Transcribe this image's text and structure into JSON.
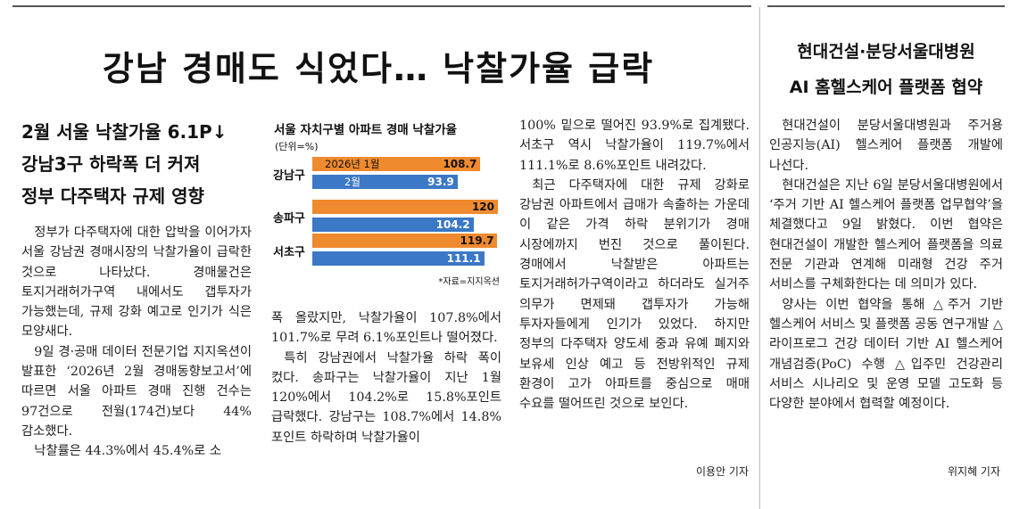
{
  "main_article": {
    "headline": "강남 경매도 식었다… 낙찰가율 급락",
    "subheads": [
      "2월 서울 낙찰가율 6.1P↓",
      "강남3구 하락폭 더 커져",
      "정부 다주택자 규제 영향"
    ],
    "col1": [
      "정부가 다주택자에 대한 압박을 이어가자 서울 강남권 경매시장의 낙찰가율이 급락한 것으로 나타났다. 경매물건은 토지거래허가구역 내에서도 갭투자가 가능했는데, 규제 강화 예고로 인기가 식은 모양새다.",
      "9일 경·공매 데이터 전문기업 지지옥션이 발표한 ‘2026년 2월 경매동향보고서’에 따르면 서울 아파트 경매 진행 건수는 97건으로 전월(174건)보다 44% 감소했다.",
      "낙찰률은 44.3%에서 45.4%로 소"
    ],
    "col2": [
      "폭 올랐지만, 낙찰가율이 107.8%에서 101.7%로 무려 6.1%포인트나 떨어졌다.",
      "특히 강남권에서 낙찰가율 하락 폭이 컸다. 송파구는 낙찰가율이 지난 1월 120%에서 104.2%로 15.8%포인트 급락했다. 강남구는 108.7%에서 14.8%포인트 하락하며 낙찰가율이"
    ],
    "col3": [
      "100% 밑으로 떨어진 93.9%로 집계됐다. 서초구 역시 낙찰가율이 119.7%에서 111.1%로 8.6%포인트 내려갔다.",
      "최근 다주택자에 대한 규제 강화로 강남권 아파트에서 급매가 속출하는 가운데 이 같은 가격 하락 분위기가 경매 시장에까지 번진 것으로 풀이된다. 경매에서 낙찰받은 아파트는 토지거래허가구역이라고 하더라도 실거주 의무가 면제돼 갭투자가 가능해 투자자들에게 인기가 있었다. 하지만 정부의 다주택자 양도세 중과 유예 폐지와 보유세 인상 예고 등 전방위적인 규제 환경이 고가 아파트를 중심으로 매매 수요를 떨어뜨린 것으로 보인다."
    ],
    "byline": "이용안 기자"
  },
  "chart_data": {
    "type": "bar",
    "title": "서울 자치구별 아파트 경매 낙찰가율",
    "unit": "(단위=%)",
    "source": "*자료=지지옥션",
    "categories": [
      "강남구",
      "송파구",
      "서초구"
    ],
    "series": [
      {
        "name": "2026년 1월",
        "values": [
          108.7,
          120,
          119.7
        ],
        "color": "#ef8a2e",
        "label_color": "#111111"
      },
      {
        "name": "2월",
        "values": [
          93.9,
          104.2,
          111.1
        ],
        "color": "#3b78c6",
        "label_color": "#ffffff"
      }
    ],
    "value_labels": [
      [
        "108.7",
        "120",
        "119.7"
      ],
      [
        "93.9",
        "104.2",
        "111.1"
      ]
    ]
  },
  "side_article": {
    "headline": [
      "현대건설·분당서울대병원",
      "AI 홈헬스케어 플랫폼 협약"
    ],
    "paragraphs": [
      "현대건설이 분당서울대병원과 주거용 인공지능(AI) 헬스케어 플랫폼 개발에 나선다.",
      "현대건설은 지난 6일 분당서울대병원에서 ‘주거 기반 AI 헬스케어 플랫폼 업무협약’을 체결했다고 9일 밝혔다. 이번 협약은 현대건설이 개발한 헬스케어 플랫폼을 의료 전문 기관과 연계해 미래형 건강 주거 서비스를 구체화한다는 데 의미가 있다.",
      "양사는 이번 협약을 통해 △주거 기반 헬스케어 서비스 및 플랫폼 공동 연구개발 △라이프로그 건강 데이터 기반 AI 헬스케어 개념검증(PoC) 수행 △입주민 건강관리 서비스 시나리오 및 운영 모델 고도화 등 다양한 분야에서 협력할 예정이다."
    ],
    "byline": "위지혜 기자"
  }
}
